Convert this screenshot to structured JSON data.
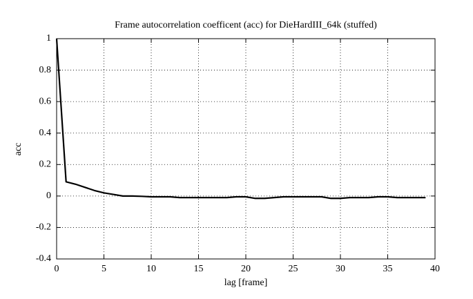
{
  "chart_data": {
    "type": "line",
    "title": "Frame autocorrelation coefficent (acc) for DieHardIII_64k (stuffed)",
    "xlabel": "lag [frame]",
    "ylabel": "acc",
    "x": [
      0,
      1,
      2,
      3,
      4,
      5,
      6,
      7,
      8,
      9,
      10,
      11,
      12,
      13,
      14,
      15,
      16,
      17,
      18,
      19,
      20,
      21,
      22,
      23,
      24,
      25,
      26,
      27,
      28,
      29,
      30,
      31,
      32,
      33,
      34,
      35,
      36,
      37,
      38,
      39
    ],
    "series": [
      {
        "color": "#000000",
        "values": [
          1,
          0.09,
          0.075,
          0.055,
          0.035,
          0.02,
          0.01,
          0,
          0,
          -0.002,
          -0.005,
          -0.005,
          -0.005,
          -0.01,
          -0.01,
          -0.01,
          -0.01,
          -0.01,
          -0.01,
          -0.005,
          -0.005,
          -0.015,
          -0.015,
          -0.01,
          -0.005,
          -0.005,
          -0.005,
          -0.005,
          -0.005,
          -0.015,
          -0.015,
          -0.01,
          -0.01,
          -0.01,
          -0.005,
          -0.005,
          -0.01,
          -0.01,
          -0.01,
          -0.01
        ]
      }
    ],
    "xlim": [
      0,
      40
    ],
    "xticks": [
      0,
      5,
      10,
      15,
      20,
      25,
      30,
      35,
      40
    ],
    "ylim": [
      -0.4,
      1
    ],
    "yticks": [
      -0.4,
      -0.2,
      0,
      0.2,
      0.4,
      0.6,
      0.8,
      1
    ],
    "grid": true
  }
}
